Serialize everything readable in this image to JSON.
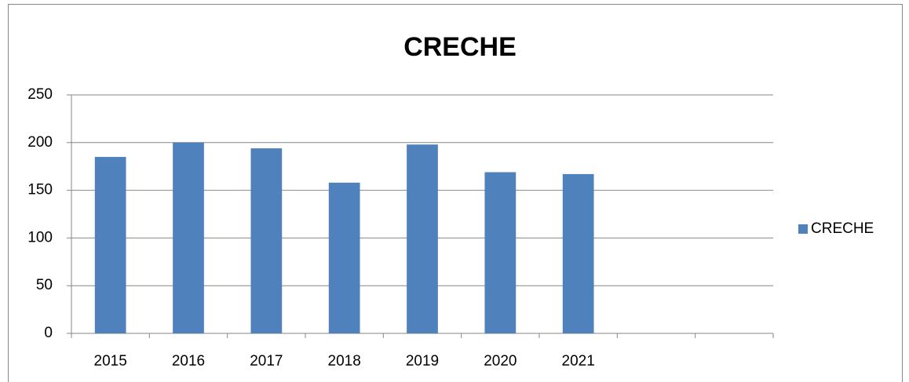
{
  "chart_data": {
    "type": "bar",
    "title": "CRECHE",
    "categories": [
      "2015",
      "2016",
      "2017",
      "2018",
      "2019",
      "2020",
      "2021",
      null,
      null
    ],
    "series": [
      {
        "name": "CRECHE",
        "color": "#4f81bd",
        "values": [
          185,
          200,
          194,
          158,
          198,
          169,
          167,
          null,
          null
        ]
      }
    ],
    "ylim": [
      0,
      250
    ],
    "yticks": [
      0,
      50,
      100,
      150,
      200,
      250
    ],
    "grid": true,
    "legend": "right"
  }
}
